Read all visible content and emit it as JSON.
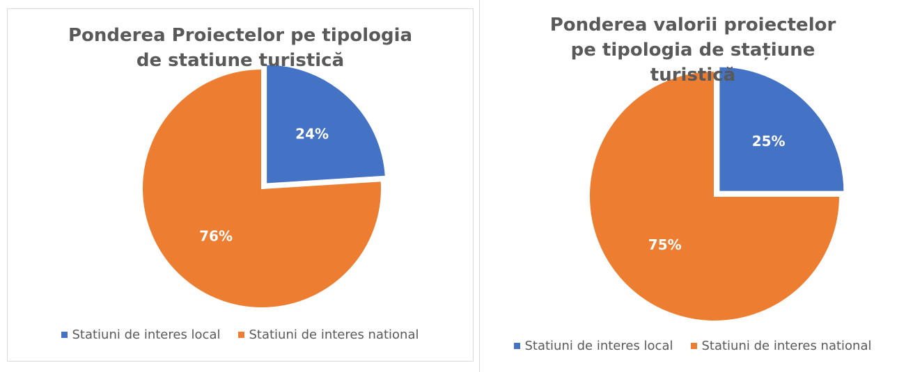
{
  "chart_data": [
    {
      "type": "pie",
      "title": "Ponderea Proiectelor pe tipologia de statiune turistică",
      "categories": [
        "Statiuni de interes local",
        "Statiuni de interes national"
      ],
      "values": [
        24,
        76
      ],
      "value_labels": [
        "24%",
        "76%"
      ],
      "colors": [
        "#4472c4",
        "#ed7d31"
      ],
      "legend": "bottom"
    },
    {
      "type": "pie",
      "title": "Ponderea valorii proiectelor pe tipologia de stațiune turistică",
      "categories": [
        "Statiuni de interes local",
        "Statiuni de interes national"
      ],
      "values": [
        25,
        75
      ],
      "value_labels": [
        "25%",
        "75%"
      ],
      "colors": [
        "#4472c4",
        "#ed7d31"
      ],
      "legend": "bottom"
    }
  ]
}
